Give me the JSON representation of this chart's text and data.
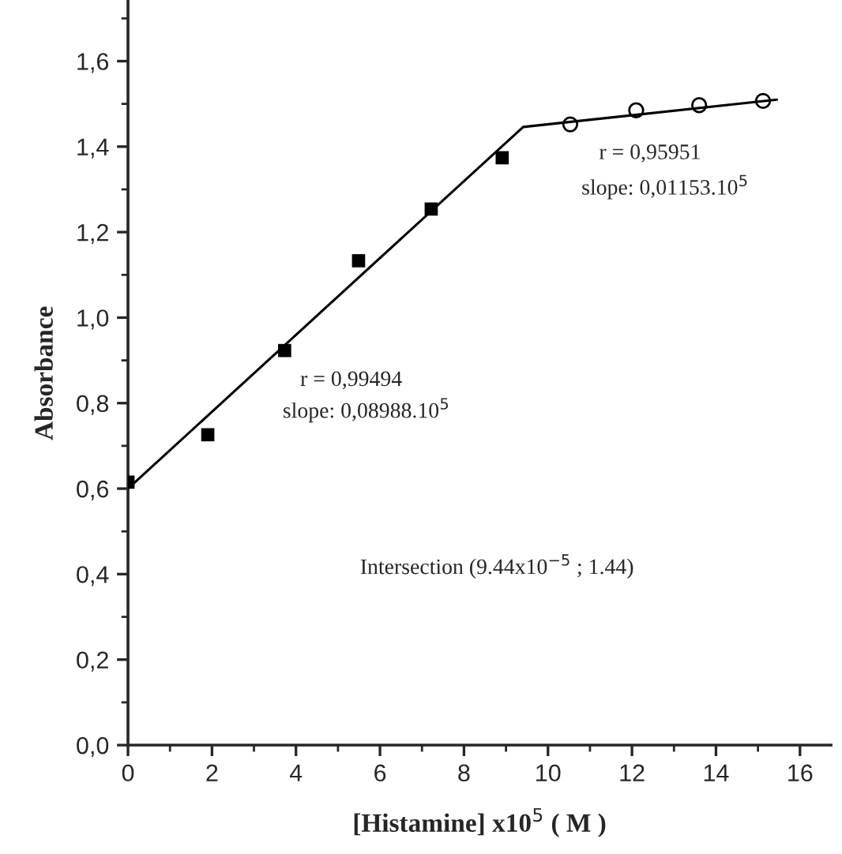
{
  "chart_data": {
    "type": "scatter",
    "xlabel": "[Histamine] x10$^{5}$ ( M )",
    "ylabel": "Absorbance",
    "annotations": [
      "r = 0,99494",
      "slope: 0,08988.10$^{5}$",
      "r = 0,95951",
      "slope: 0,01153.10$^{5}$",
      "Intersection (9.44x10$^{−5}$ ; 1.44)"
    ],
    "series": [
      {
        "marker": "square",
        "color": "#000000",
        "x": [
          0.0,
          1.9,
          3.73,
          5.49,
          7.22,
          8.91
        ],
        "values": [
          0.615,
          0.726,
          0.923,
          1.133,
          1.254,
          1.374
        ]
      },
      {
        "marker": "circle",
        "color": "#000000",
        "x": [
          10.53,
          12.1,
          13.6,
          15.12
        ],
        "values": [
          1.452,
          1.485,
          1.497,
          1.507
        ]
      },
      {
        "type": "line",
        "marker": "none",
        "line_style": "solid",
        "color": "#000000",
        "x": [
          0.0,
          9.41
        ],
        "values": [
          0.6,
          1.446
        ]
      },
      {
        "type": "line",
        "marker": "none",
        "line_style": "solid",
        "color": "#000000",
        "x": [
          9.41,
          15.45
        ],
        "values": [
          1.446,
          1.51
        ]
      }
    ],
    "xlim": [
      0,
      16.74
    ],
    "ylim": [
      0,
      1.74
    ],
    "xticks": [
      0,
      2,
      4,
      6,
      8,
      10,
      12,
      14,
      16
    ],
    "yticks": [
      {
        "value": 0.0,
        "label": "0,0"
      },
      {
        "value": 0.2,
        "label": "0,2"
      },
      {
        "value": 0.4,
        "label": "0,4"
      },
      {
        "value": 0.6,
        "label": "0,6"
      },
      {
        "value": 0.8,
        "label": "0,8"
      },
      {
        "value": 1.0,
        "label": "1,0"
      },
      {
        "value": 1.2,
        "label": "1,2"
      },
      {
        "value": 1.4,
        "label": "1,4"
      },
      {
        "value": 1.6,
        "label": "1,6"
      }
    ],
    "grid": false,
    "legend": false
  }
}
